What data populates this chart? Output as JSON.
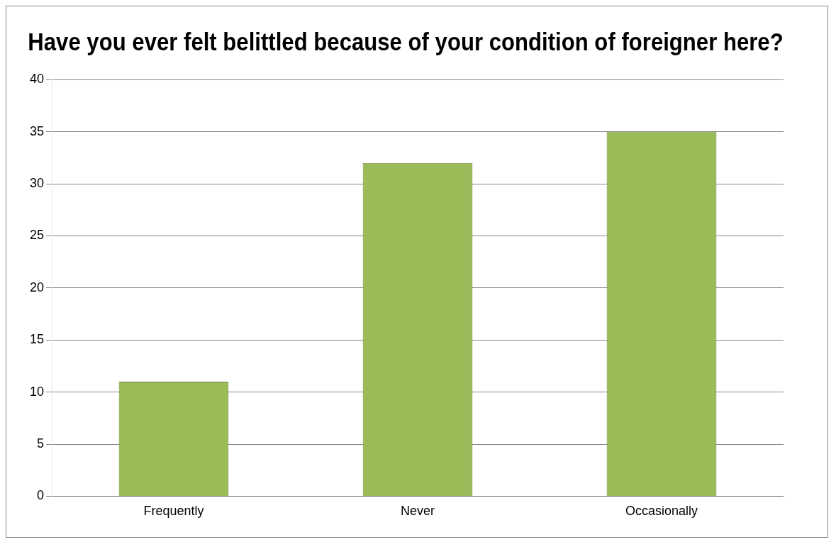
{
  "chart_data": {
    "type": "bar",
    "title": "Have you ever felt belittled because of your condition of foreigner here?",
    "categories": [
      "Frequently",
      "Never",
      "Occasionally"
    ],
    "values": [
      11,
      32,
      35
    ],
    "color": "#9bbb59",
    "ylim": [
      0,
      40
    ],
    "yticks": [
      0,
      5,
      10,
      15,
      20,
      25,
      30,
      35,
      40
    ],
    "grid": "y",
    "legend": false
  }
}
